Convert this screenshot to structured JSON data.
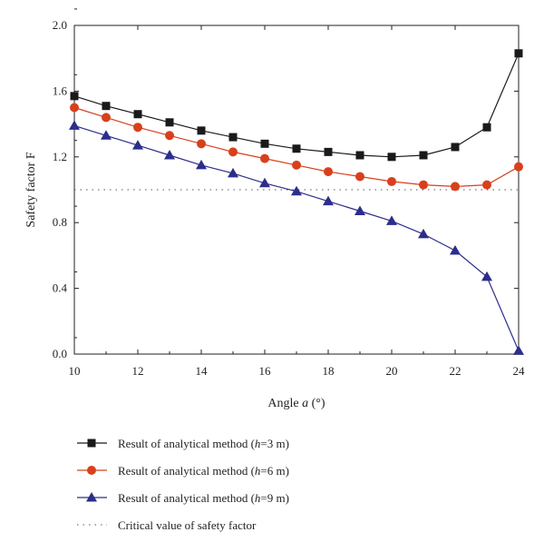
{
  "chart_data": {
    "type": "line",
    "title": "",
    "xlabel_main": "Angle ",
    "xlabel_symbol": "a",
    "xlabel_unit": " (°)",
    "ylabel": "Safety factor F",
    "xlim": [
      10,
      24
    ],
    "ylim": [
      0.0,
      2.0
    ],
    "x_ticks": [
      "10",
      "12",
      "14",
      "16",
      "18",
      "20",
      "22",
      "24"
    ],
    "y_ticks": [
      "0.0",
      "0.4",
      "0.8",
      "1.2",
      "1.6",
      "2.0"
    ],
    "grid": false,
    "legend_position": "below-chart",
    "x": [
      10,
      11,
      12,
      13,
      14,
      15,
      16,
      17,
      18,
      19,
      20,
      21,
      22,
      23,
      24
    ],
    "series": [
      {
        "legend_prefix": "Result of analytical method (",
        "legend_var": "h",
        "legend_suffix": "=3 m)",
        "color": "#1a1a1a",
        "marker": "square",
        "values": [
          1.57,
          1.51,
          1.46,
          1.41,
          1.36,
          1.32,
          1.28,
          1.25,
          1.23,
          1.21,
          1.2,
          1.21,
          1.26,
          1.38,
          1.83
        ]
      },
      {
        "legend_prefix": "Result of analytical method (",
        "legend_var": "h",
        "legend_suffix": "=6 m)",
        "color": "#d8401c",
        "marker": "circle",
        "values": [
          1.5,
          1.44,
          1.38,
          1.33,
          1.28,
          1.23,
          1.19,
          1.15,
          1.11,
          1.08,
          1.05,
          1.03,
          1.02,
          1.03,
          1.14
        ]
      },
      {
        "legend_prefix": "Result of analytical method (",
        "legend_var": "h",
        "legend_suffix": "=9 m)",
        "color": "#2d2d8c",
        "marker": "triangle",
        "values": [
          1.39,
          1.33,
          1.27,
          1.21,
          1.15,
          1.1,
          1.04,
          0.99,
          0.93,
          0.87,
          0.81,
          0.73,
          0.63,
          0.47,
          0.02
        ]
      }
    ],
    "reference_line": {
      "value": 1.0,
      "label": "Critical value of safety factor",
      "color": "#555555",
      "style": "dotted"
    }
  }
}
